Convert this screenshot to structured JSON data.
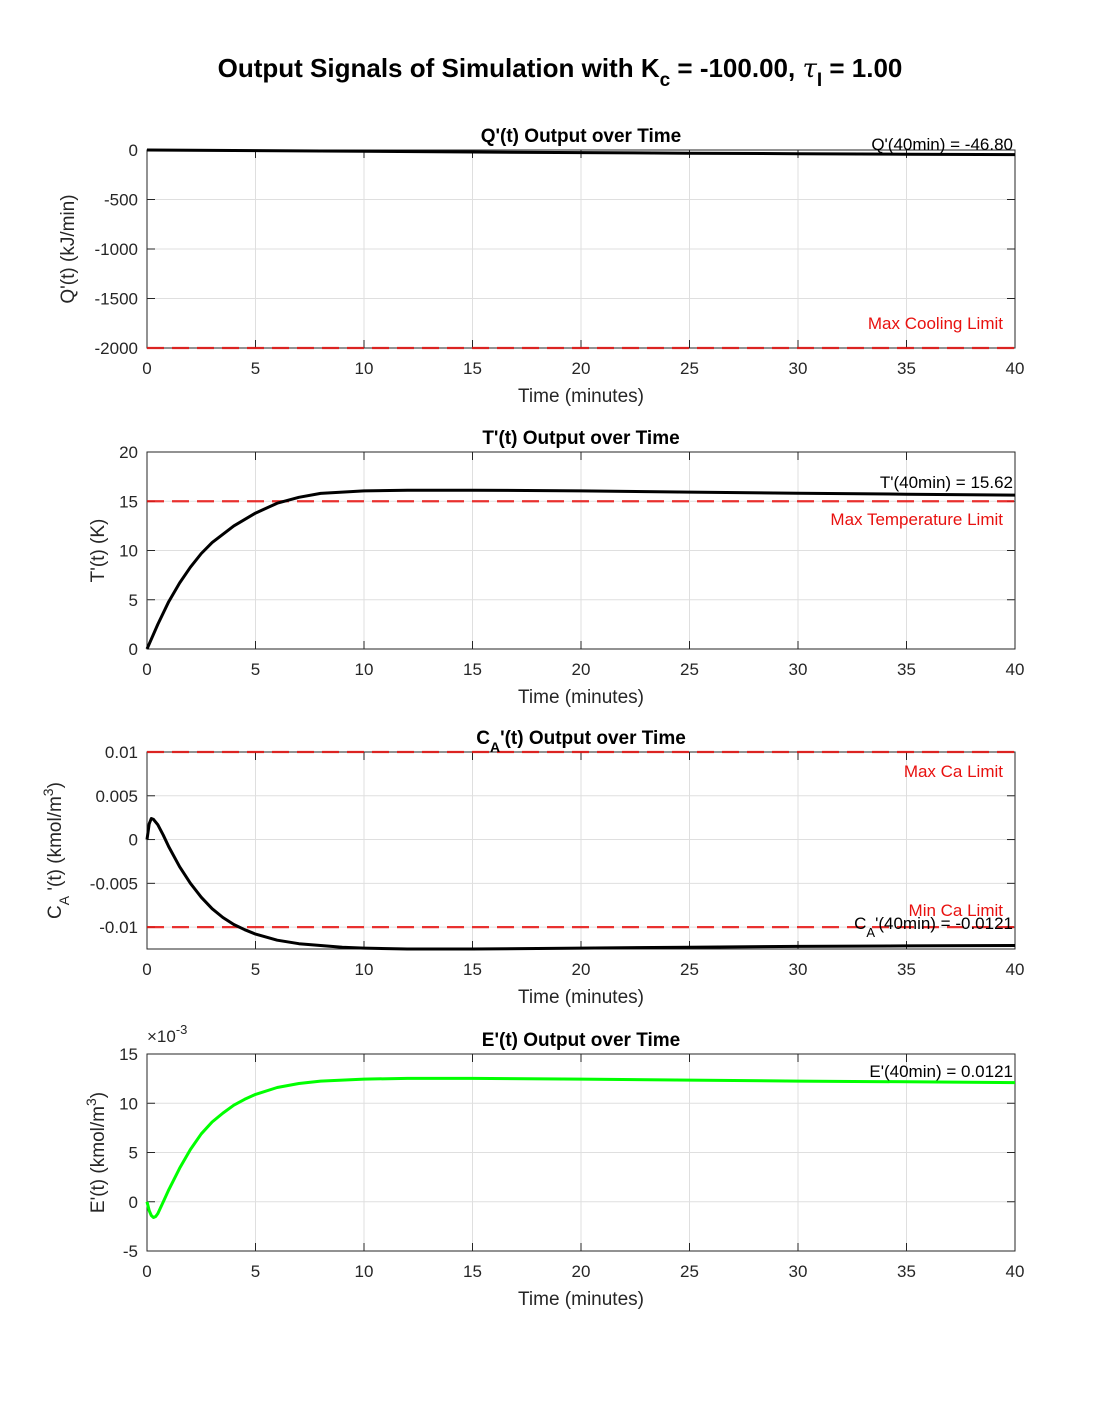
{
  "figure": {
    "title_parts": [
      "Output Signals of Simulation with K",
      "c",
      " = -100.00, ",
      "τ",
      "I",
      " = 1.00"
    ]
  },
  "colors": {
    "signal": "#000000",
    "error_signal": "#00ff00",
    "limit": "#e8110f",
    "grid": "#dfdfdf"
  },
  "chart_data": [
    {
      "type": "line",
      "title": "Q'(t) Output over Time",
      "xlabel": "Time (minutes)",
      "ylabel": "Q'(t) (kJ/min)",
      "xlim": [
        0,
        40
      ],
      "ylim": [
        -2000,
        0
      ],
      "xticks": [
        0,
        5,
        10,
        15,
        20,
        25,
        30,
        35,
        40
      ],
      "yticks": [
        -2000,
        -1500,
        -1000,
        -500,
        0
      ],
      "ytick_labels": [
        "-2000",
        "-1500",
        "-1000",
        "-500",
        "0"
      ],
      "grid": true,
      "series": [
        {
          "color": "#000000",
          "x": [
            0,
            2,
            5,
            10,
            15,
            20,
            25,
            30,
            35,
            40
          ],
          "y": [
            0,
            -2,
            -6,
            -13,
            -20,
            -26,
            -32,
            -37,
            -42,
            -46.8
          ]
        }
      ],
      "limits": [
        {
          "label": "Max Cooling Limit",
          "y": -2000
        }
      ],
      "annotation": "Q'(40min) = -46.80"
    },
    {
      "type": "line",
      "title": "T'(t) Output over Time",
      "xlabel": "Time (minutes)",
      "ylabel": "T'(t) (K)",
      "xlim": [
        0,
        40
      ],
      "ylim": [
        0,
        20
      ],
      "xticks": [
        0,
        5,
        10,
        15,
        20,
        25,
        30,
        35,
        40
      ],
      "yticks": [
        0,
        5,
        10,
        15,
        20
      ],
      "ytick_labels": [
        "0",
        "5",
        "10",
        "15",
        "20"
      ],
      "grid": true,
      "series": [
        {
          "color": "#000000",
          "x": [
            0,
            0.5,
            1,
            1.5,
            2,
            2.5,
            3,
            4,
            5,
            6,
            7,
            8,
            10,
            12,
            15,
            20,
            25,
            30,
            35,
            40
          ],
          "y": [
            0,
            2.5,
            4.8,
            6.7,
            8.3,
            9.7,
            10.8,
            12.5,
            13.8,
            14.8,
            15.4,
            15.8,
            16.05,
            16.12,
            16.12,
            16.05,
            15.93,
            15.82,
            15.72,
            15.62
          ]
        }
      ],
      "limits": [
        {
          "label": "Max Temperature Limit",
          "y": 15
        }
      ],
      "annotation": "T'(40min) = 15.62"
    },
    {
      "type": "line",
      "title_parts": [
        "C",
        "A",
        "'(t) Output over Time"
      ],
      "xlabel": "Time (minutes)",
      "ylabel_parts": [
        "C",
        "A",
        " '(t) (kmol/m",
        "3",
        ")"
      ],
      "xlim": [
        0,
        40
      ],
      "ylim": [
        -0.0125,
        0.01
      ],
      "xticks": [
        0,
        5,
        10,
        15,
        20,
        25,
        30,
        35,
        40
      ],
      "yticks": [
        -0.01,
        -0.005,
        0,
        0.005,
        0.01
      ],
      "ytick_labels": [
        "-0.01",
        "-0.005",
        "0",
        "0.005",
        "0.01"
      ],
      "grid": true,
      "series": [
        {
          "color": "#000000",
          "x": [
            0,
            0.1,
            0.2,
            0.3,
            0.5,
            0.75,
            1,
            1.5,
            2,
            2.5,
            3,
            3.5,
            4,
            4.5,
            5,
            6,
            7,
            8,
            9,
            10,
            12,
            15,
            20,
            25,
            30,
            35,
            40
          ],
          "y": [
            0,
            0.0018,
            0.0024,
            0.0023,
            0.0017,
            0.0005,
            -0.0008,
            -0.0031,
            -0.005,
            -0.0066,
            -0.0079,
            -0.0089,
            -0.0097,
            -0.0103,
            -0.0108,
            -0.0115,
            -0.0119,
            -0.0121,
            -0.0123,
            -0.0124,
            -0.0125,
            -0.0125,
            -0.0124,
            -0.0123,
            -0.0122,
            -0.01215,
            -0.0121
          ]
        }
      ],
      "limits": [
        {
          "label": "Max Ca Limit",
          "y": 0.01
        },
        {
          "label": "Min Ca Limit",
          "y": -0.01
        }
      ],
      "annotation_parts": [
        "C",
        "A",
        "'(40min) = -0.0121"
      ]
    },
    {
      "type": "line",
      "title": "E'(t) Output over Time",
      "xlabel": "Time (minutes)",
      "ylabel_parts": [
        "E'(t) (kmol/m",
        "3",
        ")"
      ],
      "exponent_parts": [
        "×10",
        "-3"
      ],
      "xlim": [
        0,
        40
      ],
      "ylim": [
        -5,
        15
      ],
      "xticks": [
        0,
        5,
        10,
        15,
        20,
        25,
        30,
        35,
        40
      ],
      "yticks": [
        -5,
        0,
        5,
        10,
        15
      ],
      "ytick_labels": [
        "-5",
        "0",
        "5",
        "10",
        "15"
      ],
      "grid": true,
      "series": [
        {
          "color": "#00ff00",
          "x": [
            0,
            0.1,
            0.2,
            0.3,
            0.4,
            0.5,
            0.75,
            1,
            1.5,
            2,
            2.5,
            3,
            3.5,
            4,
            4.5,
            5,
            6,
            7,
            8,
            10,
            12,
            15,
            20,
            25,
            30,
            35,
            40
          ],
          "y": [
            0,
            -0.9,
            -1.4,
            -1.6,
            -1.5,
            -1.2,
            0,
            1.2,
            3.4,
            5.3,
            6.9,
            8.1,
            9.0,
            9.8,
            10.4,
            10.9,
            11.6,
            12.0,
            12.25,
            12.45,
            12.52,
            12.52,
            12.45,
            12.35,
            12.25,
            12.18,
            12.1
          ]
        }
      ],
      "annotation": "E'(40min) = 0.0121"
    }
  ]
}
